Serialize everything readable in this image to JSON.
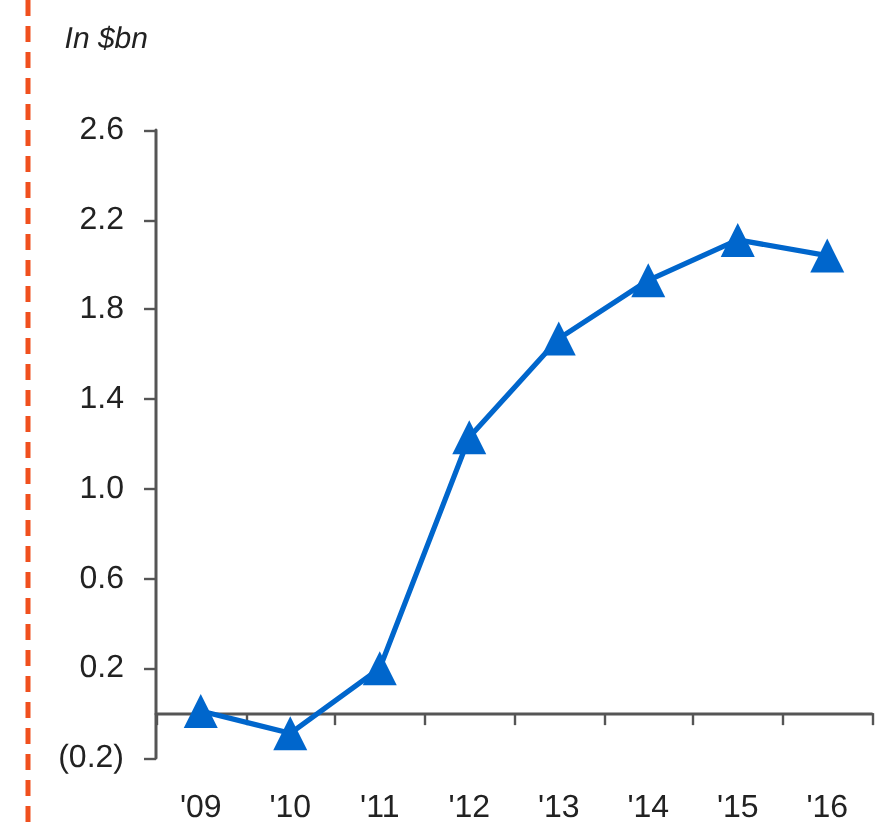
{
  "chart_data": {
    "type": "line",
    "ylabel": "In $bn",
    "categories": [
      "'09",
      "'10",
      "'11",
      "'12",
      "'13",
      "'14",
      "'15",
      "'16"
    ],
    "series": [
      {
        "color": "#0066cc",
        "values": [
          0.01,
          -0.09,
          0.2,
          1.23,
          1.67,
          1.93,
          2.11,
          2.04
        ]
      }
    ],
    "ylim": [
      -0.2,
      2.6
    ],
    "yticks": [
      {
        "value": -0.2,
        "label": "(0.2)"
      },
      0.2,
      0.6,
      {
        "value": 1,
        "label": "1.0"
      },
      1.4,
      1.8,
      2.2,
      2.6
    ],
    "grid": false,
    "marker": "triangle",
    "line_style": "solid"
  }
}
